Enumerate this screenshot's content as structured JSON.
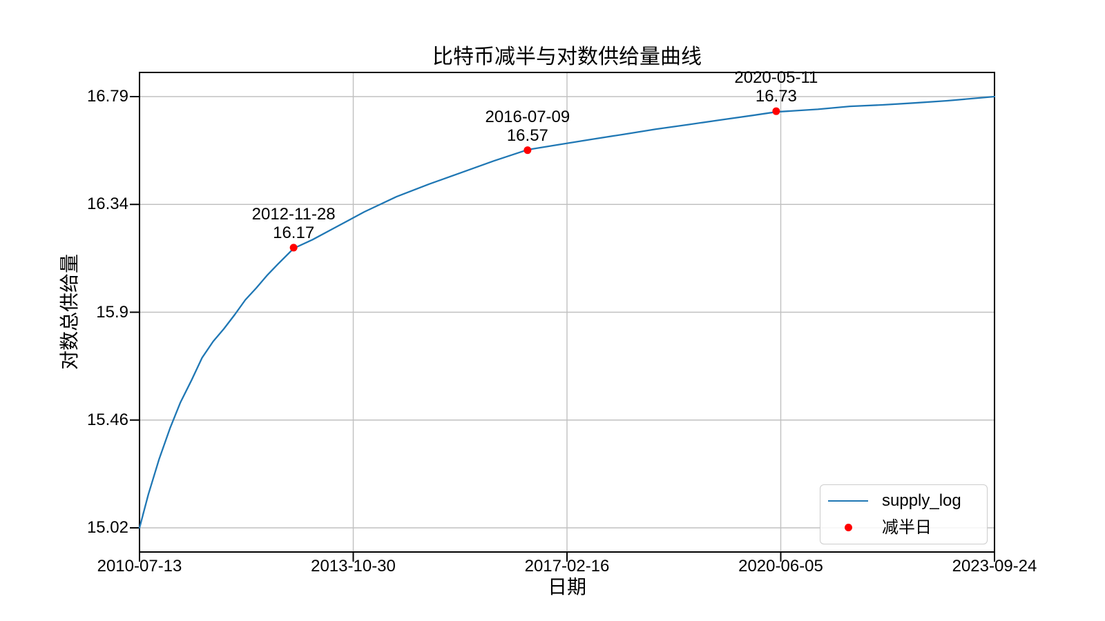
{
  "title": "比特币减半与对数供给量曲线",
  "axes": {
    "x_label": "日期",
    "y_label": "对数总供给量",
    "x_ticks": [
      "2010-07-13",
      "2013-10-30",
      "2017-02-16",
      "2020-06-05",
      "2023-09-24"
    ],
    "y_ticks": [
      "16.79",
      "16.34",
      "15.9",
      "15.46",
      "15.02"
    ]
  },
  "legend": {
    "items": [
      {
        "label": "supply_log",
        "marker": "line-sample",
        "color": "#1f77b4"
      },
      {
        "label": "减半日",
        "marker": "dot-sample",
        "color": "#ff0000"
      }
    ]
  },
  "colors": {
    "line": "#1f77b4",
    "halving_dot": "#ff0000",
    "grid": "#c0c0c0",
    "spine": "#000000",
    "text": "#000000"
  },
  "chart_data": {
    "type": "line",
    "title": "比特币减半与对数供给量曲线",
    "xlabel": "日期",
    "ylabel": "对数总供给量",
    "x_start_date": "2010-07-13",
    "x_end_date": "2023-09-24",
    "x_total_days": 4821,
    "x_tick_dates": [
      "2010-07-13",
      "2013-10-30",
      "2017-02-16",
      "2020-06-05",
      "2023-09-24"
    ],
    "y_tick_values": [
      15.02,
      15.46,
      15.9,
      16.34,
      16.79
    ],
    "ylim": [
      14.93,
      16.88
    ],
    "grid": true,
    "legend_position": "lower right",
    "series": [
      {
        "name": "supply_log",
        "color": "#1f77b4",
        "points_days_value": [
          [
            0,
            15.02
          ],
          [
            50,
            15.157
          ],
          [
            111,
            15.303
          ],
          [
            172,
            15.429
          ],
          [
            231,
            15.535
          ],
          [
            292,
            15.624
          ],
          [
            353,
            15.718
          ],
          [
            415,
            15.785
          ],
          [
            476,
            15.837
          ],
          [
            537,
            15.895
          ],
          [
            597,
            15.956
          ],
          [
            658,
            16.004
          ],
          [
            719,
            16.056
          ],
          [
            781,
            16.103
          ],
          [
            869,
            16.167
          ],
          [
            976,
            16.203
          ],
          [
            1084,
            16.245
          ],
          [
            1268,
            16.317
          ],
          [
            1449,
            16.379
          ],
          [
            1633,
            16.431
          ],
          [
            1814,
            16.478
          ],
          [
            1998,
            16.526
          ],
          [
            2188,
            16.572
          ],
          [
            2364,
            16.593
          ],
          [
            2545,
            16.614
          ],
          [
            2729,
            16.635
          ],
          [
            2910,
            16.656
          ],
          [
            3094,
            16.675
          ],
          [
            3275,
            16.694
          ],
          [
            3459,
            16.713
          ],
          [
            3590,
            16.727
          ],
          [
            3825,
            16.738
          ],
          [
            4006,
            16.75
          ],
          [
            4190,
            16.756
          ],
          [
            4371,
            16.764
          ],
          [
            4555,
            16.773
          ],
          [
            4821,
            16.79
          ]
        ]
      }
    ],
    "halvings": [
      {
        "date": "2012-11-28",
        "days": 869,
        "supply_log": 16.17,
        "label_line1": "2012-11-28",
        "label_line2": "16.17"
      },
      {
        "date": "2016-07-09",
        "days": 2188,
        "supply_log": 16.57,
        "label_line1": "2016-07-09",
        "label_line2": "16.57"
      },
      {
        "date": "2020-05-11",
        "days": 3590,
        "supply_log": 16.73,
        "label_line1": "2020-05-11",
        "label_line2": "16.73"
      }
    ]
  }
}
